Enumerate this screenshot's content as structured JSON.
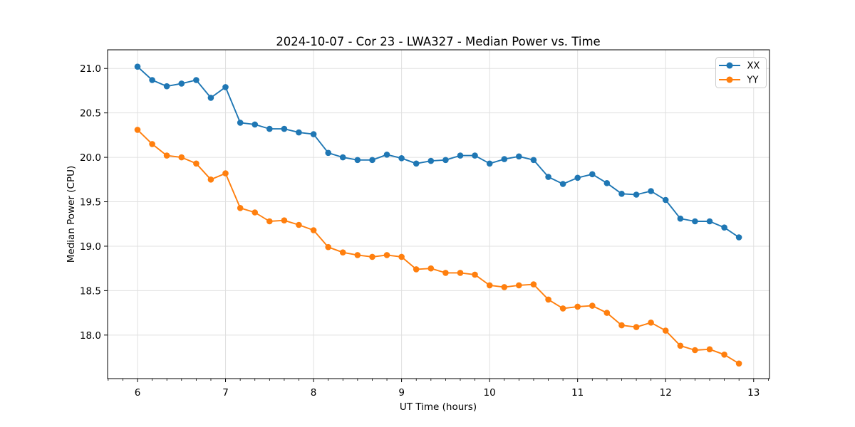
{
  "chart_data": {
    "type": "line",
    "title": "2024-10-07 - Cor 23 - LWA327 - Median Power vs. Time",
    "xlabel": "UT Time (hours)",
    "ylabel": "Median Power (CPU)",
    "xlim": [
      5.66,
      13.18
    ],
    "ylim": [
      17.51,
      21.21
    ],
    "grid": true,
    "legend_position": "upper right",
    "x_ticks": {
      "values": [
        6,
        7,
        8,
        9,
        10,
        11,
        12,
        13
      ],
      "labels": [
        "6",
        "7",
        "8",
        "9",
        "10",
        "11",
        "12",
        "13"
      ],
      "minor_step": 0.16667
    },
    "y_ticks": {
      "values": [
        18.0,
        18.5,
        19.0,
        19.5,
        20.0,
        20.5,
        21.0
      ],
      "labels": [
        "18.0",
        "18.5",
        "19.0",
        "19.5",
        "20.0",
        "20.5",
        "21.0"
      ]
    },
    "x": [
      6.0,
      6.167,
      6.333,
      6.5,
      6.667,
      6.833,
      7.0,
      7.167,
      7.333,
      7.5,
      7.667,
      7.833,
      8.0,
      8.167,
      8.333,
      8.5,
      8.667,
      8.833,
      9.0,
      9.167,
      9.333,
      9.5,
      9.667,
      9.833,
      10.0,
      10.167,
      10.333,
      10.5,
      10.667,
      10.833,
      11.0,
      11.167,
      11.333,
      11.5,
      11.667,
      11.833,
      12.0,
      12.167,
      12.333,
      12.5,
      12.667,
      12.833
    ],
    "series": [
      {
        "name": "XX",
        "color": "#1f77b4",
        "values": [
          21.02,
          20.87,
          20.8,
          20.83,
          20.87,
          20.67,
          20.79,
          20.39,
          20.37,
          20.32,
          20.32,
          20.28,
          20.26,
          20.05,
          20.0,
          19.97,
          19.97,
          20.03,
          19.99,
          19.93,
          19.96,
          19.97,
          20.02,
          20.02,
          19.93,
          19.98,
          20.01,
          19.97,
          19.78,
          19.7,
          19.77,
          19.81,
          19.71,
          19.59,
          19.58,
          19.62,
          19.52,
          19.31,
          19.28,
          19.28,
          19.21,
          19.1
        ]
      },
      {
        "name": "YY",
        "color": "#ff7f0e",
        "values": [
          20.31,
          20.15,
          20.02,
          20.0,
          19.93,
          19.75,
          19.82,
          19.43,
          19.38,
          19.28,
          19.29,
          19.24,
          19.18,
          18.99,
          18.93,
          18.9,
          18.88,
          18.9,
          18.88,
          18.74,
          18.75,
          18.7,
          18.7,
          18.68,
          18.56,
          18.54,
          18.56,
          18.57,
          18.4,
          18.3,
          18.32,
          18.33,
          18.25,
          18.11,
          18.09,
          18.14,
          18.05,
          17.88,
          17.83,
          17.84,
          17.78,
          17.68
        ]
      }
    ],
    "colors": {
      "grid": "#e0e0e0",
      "spine": "#000000",
      "tick": "#000000",
      "text": "#000000",
      "background": "#ffffff",
      "legend_border": "#cccccc",
      "legend_background": "#ffffff"
    }
  }
}
